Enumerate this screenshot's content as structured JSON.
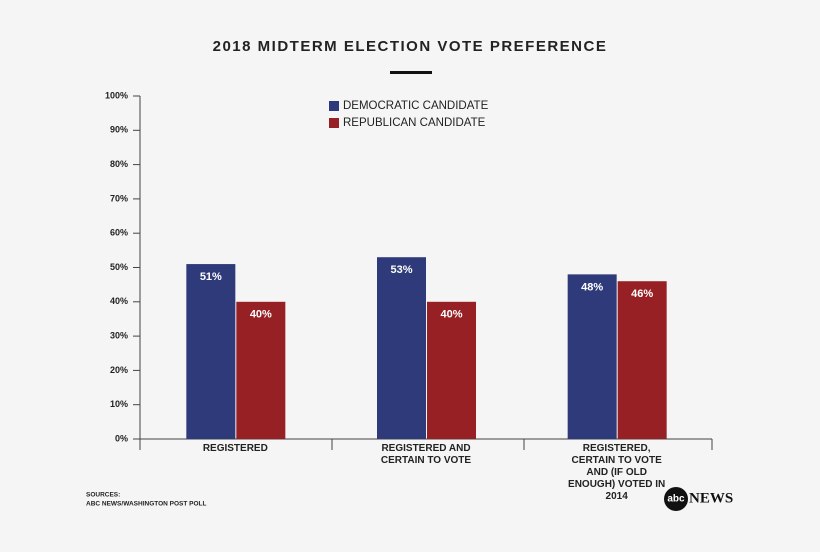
{
  "chart_data": {
    "type": "bar",
    "title": "2018 MIDTERM ELECTION VOTE PREFERENCE",
    "categories": [
      "REGISTERED",
      "REGISTERED AND CERTAIN TO VOTE",
      "REGISTERED, CERTAIN TO VOTE AND (IF OLD ENOUGH) VOTED IN 2014"
    ],
    "series": [
      {
        "name": "DEMOCRATIC CANDIDATE",
        "color": "#2e3a7a",
        "values": [
          51,
          53,
          48
        ],
        "value_labels": [
          "51%",
          "53%",
          "48%"
        ]
      },
      {
        "name": "REPUBLICAN CANDIDATE",
        "color": "#962024",
        "values": [
          40,
          40,
          46
        ],
        "value_labels": [
          "40%",
          "40%",
          "46%"
        ]
      }
    ],
    "ylim": [
      0,
      100
    ],
    "yticks": [
      {
        "value": 0,
        "label": "0%"
      },
      {
        "value": 10,
        "label": "10%"
      },
      {
        "value": 20,
        "label": "20%"
      },
      {
        "value": 30,
        "label": "30%"
      },
      {
        "value": 40,
        "label": "40%"
      },
      {
        "value": 50,
        "label": "50%"
      },
      {
        "value": 60,
        "label": "60%"
      },
      {
        "value": 70,
        "label": "70%"
      },
      {
        "value": 80,
        "label": "80%"
      },
      {
        "value": 90,
        "label": "90%"
      },
      {
        "value": 100,
        "label": "100%"
      }
    ],
    "legend": "top",
    "sources_label": "SOURCES:",
    "source": "ABC NEWS/WASHINGTON POST POLL",
    "logo_mark": "abc",
    "logo_text": "NEWS"
  }
}
